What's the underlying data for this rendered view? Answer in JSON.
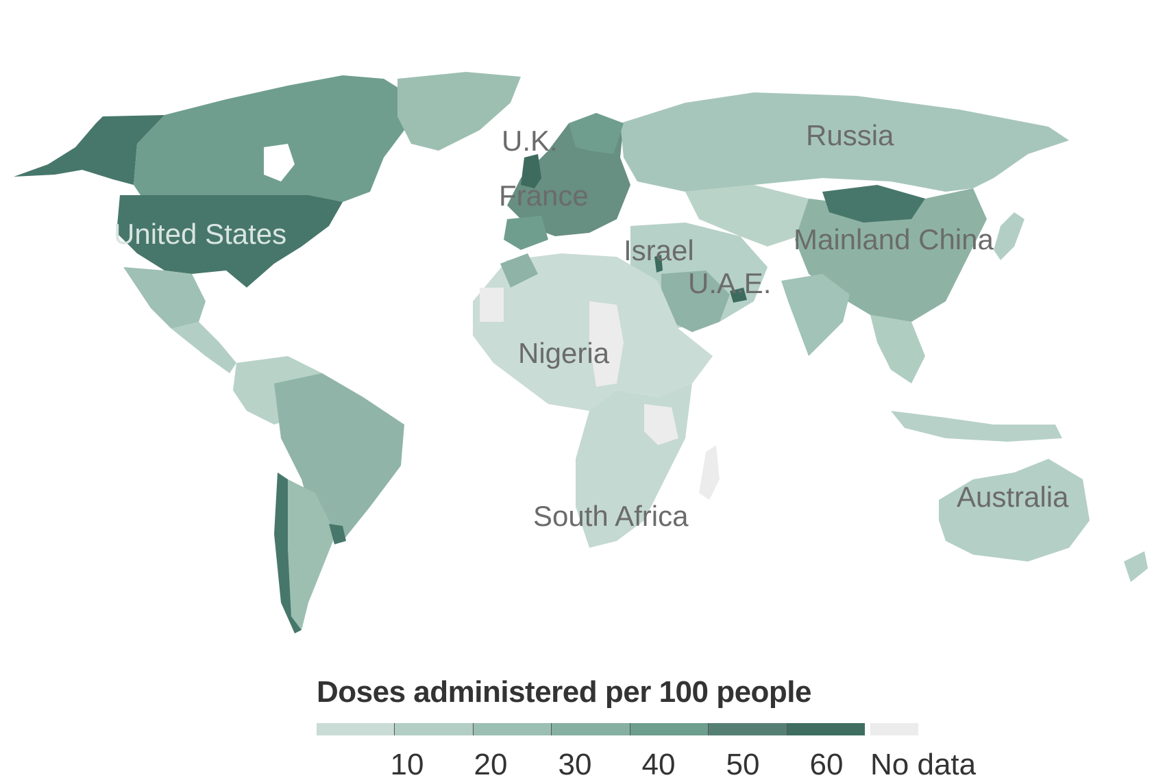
{
  "chart_data": {
    "type": "choropleth-map",
    "legend": {
      "title": "Doses administered per 100 people",
      "ticks": [
        "10",
        "20",
        "30",
        "40",
        "50",
        "60"
      ],
      "no_data_label": "No data",
      "scale_colors": [
        "#c9dcd5",
        "#b3cec4",
        "#9cbfb3",
        "#86b0a2",
        "#6d9e8e",
        "#567f74",
        "#3f6e61"
      ],
      "no_data_color": "#ececec"
    },
    "labels": [
      {
        "name": "Russia"
      },
      {
        "name": "U.K."
      },
      {
        "name": "France"
      },
      {
        "name": "United States"
      },
      {
        "name": "Israel"
      },
      {
        "name": "U.A.E."
      },
      {
        "name": "Mainland China"
      },
      {
        "name": "Nigeria"
      },
      {
        "name": "South Africa"
      },
      {
        "name": "Australia"
      }
    ]
  }
}
